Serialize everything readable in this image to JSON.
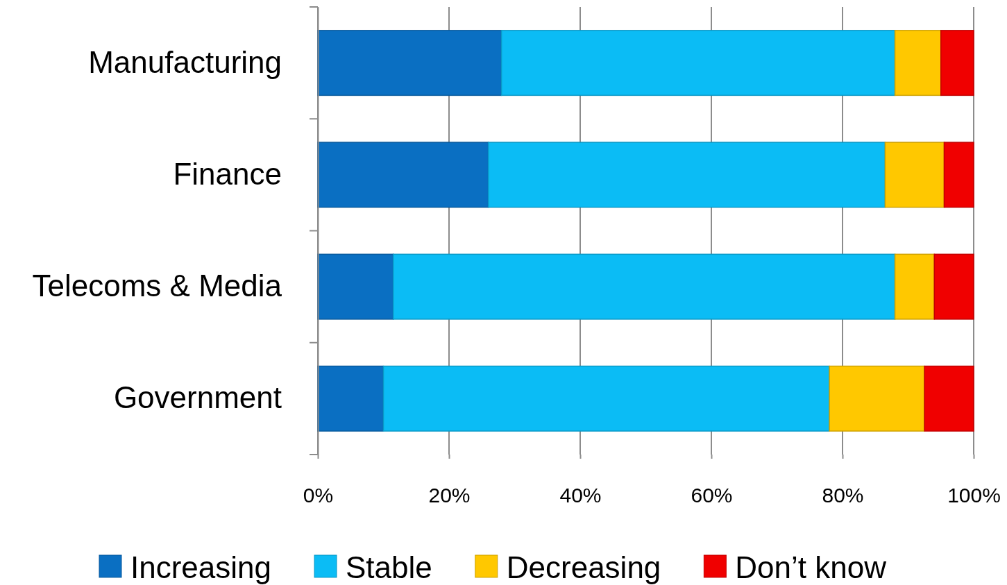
{
  "chart_data": {
    "type": "bar",
    "orientation": "horizontal",
    "stacked": true,
    "categories": [
      "Manufacturing",
      "Finance",
      "Telecoms & Media",
      "Government"
    ],
    "series": [
      {
        "name": "Increasing",
        "color": "#0a6fc2",
        "values": [
          28,
          26,
          11.5,
          10
        ]
      },
      {
        "name": "Stable",
        "color": "#0bbcf5",
        "values": [
          60,
          60.5,
          76.5,
          68
        ]
      },
      {
        "name": "Decreasing",
        "color": "#ffc800",
        "values": [
          7,
          9,
          6,
          14.5
        ]
      },
      {
        "name": "Don’t know",
        "color": "#f00000",
        "values": [
          5,
          4.5,
          6,
          7.5
        ]
      }
    ],
    "xlim": [
      0,
      100
    ],
    "xticks": [
      {
        "value": 0,
        "label": "0%"
      },
      {
        "value": 20,
        "label": "20%"
      },
      {
        "value": 40,
        "label": "40%"
      },
      {
        "value": 60,
        "label": "60%"
      },
      {
        "value": 80,
        "label": "80%"
      },
      {
        "value": 100,
        "label": "100%"
      }
    ],
    "grid": "x",
    "legend": "bottom"
  }
}
